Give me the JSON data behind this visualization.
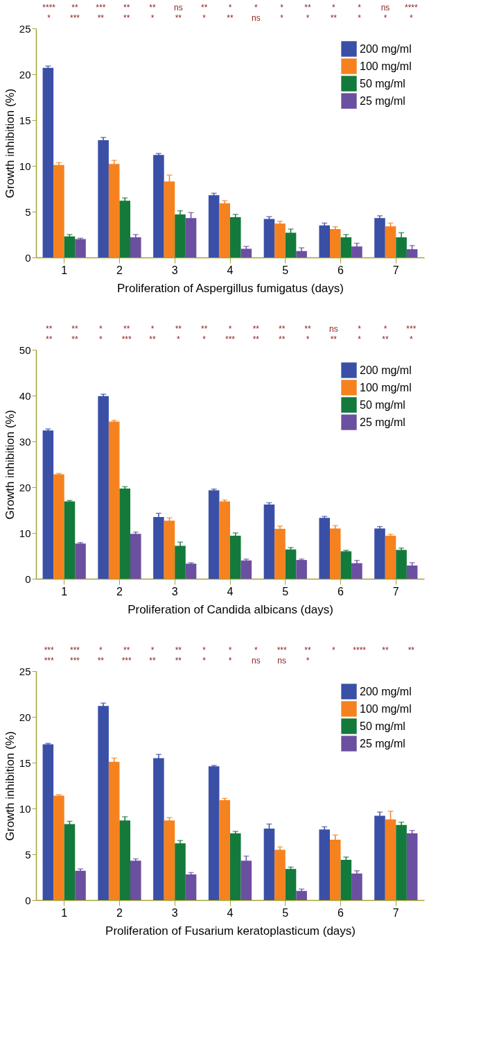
{
  "chart_data": [
    {
      "type": "bar",
      "categories": [
        "1",
        "2",
        "3",
        "4",
        "5",
        "6",
        "7"
      ],
      "xlabel": "Proliferation of Aspergillus fumigatus (days)",
      "ylabel": "Growth inhibition (%)",
      "ylim": [
        0,
        25
      ],
      "yticks": [
        0,
        5,
        10,
        15,
        20,
        25
      ],
      "grid": false,
      "legend": "top right",
      "series": [
        {
          "name": "200 mg/ml",
          "color": "#3a4fa6",
          "values": [
            20.7,
            12.8,
            11.2,
            6.8,
            4.2,
            3.5,
            4.3
          ],
          "errors": [
            0.2,
            0.3,
            0.15,
            0.2,
            0.25,
            0.25,
            0.25
          ]
        },
        {
          "name": "100 mg/ml",
          "color": "#f5821f",
          "values": [
            10.1,
            10.2,
            8.3,
            5.9,
            3.7,
            3.1,
            3.4
          ],
          "errors": [
            0.25,
            0.4,
            0.7,
            0.3,
            0.25,
            0.25,
            0.35
          ]
        },
        {
          "name": "50 mg/ml",
          "color": "#137a3b",
          "values": [
            2.3,
            6.2,
            4.7,
            4.4,
            2.7,
            2.2,
            2.2
          ],
          "errors": [
            0.2,
            0.3,
            0.4,
            0.3,
            0.4,
            0.3,
            0.5
          ]
        },
        {
          "name": "25 mg/ml",
          "color": "#6b4fa0",
          "values": [
            2.0,
            2.2,
            4.3,
            0.95,
            0.7,
            1.2,
            0.9
          ],
          "errors": [
            0.1,
            0.3,
            0.6,
            0.25,
            0.35,
            0.35,
            0.4
          ]
        }
      ],
      "annotations": [
        "****",
        "**",
        "***",
        "**",
        "**",
        "ns",
        "**",
        "*",
        "*",
        "*",
        "**",
        "*",
        "*",
        "ns",
        "****",
        "*",
        "***",
        "**",
        "**",
        "*",
        "**",
        "*",
        "**",
        "ns",
        "*",
        "*",
        "**",
        "*",
        "*",
        "*"
      ]
    },
    {
      "type": "bar",
      "categories": [
        "1",
        "2",
        "3",
        "4",
        "5",
        "6",
        "7"
      ],
      "xlabel": "Proliferation of Candida albicans (days)",
      "ylabel": "Growth inhibition (%)",
      "ylim": [
        0,
        50
      ],
      "yticks": [
        0,
        10,
        20,
        30,
        40,
        50
      ],
      "grid": false,
      "legend": "top right",
      "series": [
        {
          "name": "200 mg/ml",
          "color": "#3a4fa6",
          "values": [
            32.4,
            39.9,
            13.5,
            19.3,
            16.2,
            13.3,
            11.0
          ],
          "errors": [
            0.3,
            0.4,
            0.8,
            0.3,
            0.4,
            0.3,
            0.4
          ]
        },
        {
          "name": "100 mg/ml",
          "color": "#f5821f",
          "values": [
            22.8,
            34.3,
            12.7,
            16.9,
            10.9,
            11.0,
            9.4
          ],
          "errors": [
            0.2,
            0.3,
            0.6,
            0.3,
            0.6,
            0.6,
            0.3
          ]
        },
        {
          "name": "50 mg/ml",
          "color": "#137a3b",
          "values": [
            16.9,
            19.7,
            7.2,
            9.4,
            6.4,
            6.0,
            6.3
          ],
          "errors": [
            0.2,
            0.4,
            0.8,
            0.6,
            0.4,
            0.2,
            0.4
          ]
        },
        {
          "name": "25 mg/ml",
          "color": "#6b4fa0",
          "values": [
            7.7,
            9.8,
            3.3,
            4.0,
            4.1,
            3.4,
            2.9
          ],
          "errors": [
            0.2,
            0.4,
            0.2,
            0.3,
            0.2,
            0.6,
            0.6
          ]
        }
      ],
      "annotations": [
        "**",
        "**",
        "*",
        "**",
        "*",
        "**",
        "**",
        "*",
        "**",
        "**",
        "**",
        "ns",
        "*",
        "*",
        "***",
        "**",
        "**",
        "*",
        "***",
        "**",
        "*",
        "*",
        "***",
        "**",
        "**",
        "*",
        "**",
        "*",
        "**",
        "*"
      ]
    },
    {
      "type": "bar",
      "categories": [
        "1",
        "2",
        "3",
        "4",
        "5",
        "6",
        "7"
      ],
      "xlabel": "Proliferation of Fusarium keratoplasticum (days)",
      "ylabel": "Growth inhibition (%)",
      "ylim": [
        0,
        25
      ],
      "yticks": [
        0,
        5,
        10,
        15,
        20,
        25
      ],
      "grid": false,
      "legend": "top right",
      "series": [
        {
          "name": "200 mg/ml",
          "color": "#3a4fa6",
          "values": [
            17.0,
            21.2,
            15.5,
            14.6,
            7.8,
            7.7,
            9.2
          ],
          "errors": [
            0.1,
            0.3,
            0.4,
            0.1,
            0.5,
            0.3,
            0.4
          ]
        },
        {
          "name": "100 mg/ml",
          "color": "#f5821f",
          "values": [
            11.4,
            15.1,
            8.7,
            10.9,
            5.5,
            6.6,
            8.8
          ],
          "errors": [
            0.1,
            0.4,
            0.3,
            0.2,
            0.3,
            0.5,
            0.9
          ]
        },
        {
          "name": "50 mg/ml",
          "color": "#137a3b",
          "values": [
            8.3,
            8.7,
            6.2,
            7.3,
            3.4,
            4.4,
            8.2
          ],
          "errors": [
            0.3,
            0.4,
            0.3,
            0.2,
            0.2,
            0.3,
            0.3
          ]
        },
        {
          "name": "25 mg/ml",
          "color": "#6b4fa0",
          "values": [
            3.2,
            4.3,
            2.8,
            4.3,
            1.0,
            2.9,
            7.3
          ],
          "errors": [
            0.2,
            0.2,
            0.2,
            0.5,
            0.2,
            0.3,
            0.3
          ]
        }
      ],
      "annotations": [
        "***",
        "***",
        "*",
        "**",
        "*",
        "**",
        "*",
        "*",
        "*",
        "***",
        "**",
        "*",
        "****",
        "**",
        "**",
        "***",
        "***",
        "**",
        "***",
        "**",
        "**",
        "*",
        "*",
        "ns",
        "ns",
        "*"
      ]
    }
  ]
}
